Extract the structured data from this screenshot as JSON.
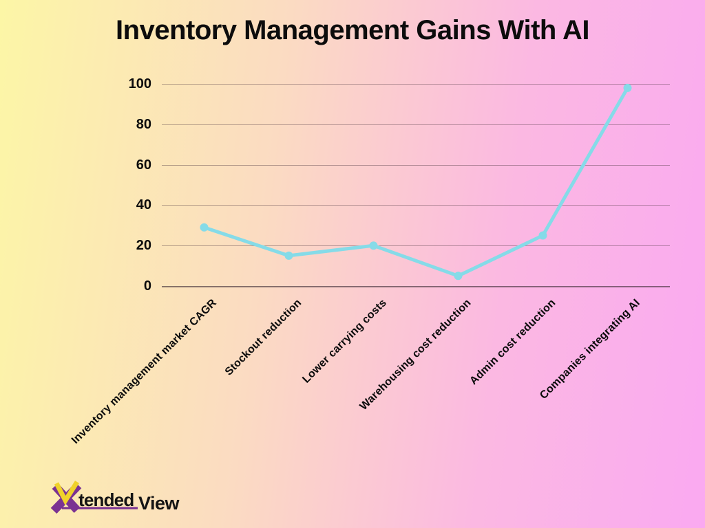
{
  "chart_data": {
    "type": "line",
    "title": "Inventory Management Gains With AI",
    "categories": [
      "Inventory management market CAGR",
      "Stockout reduction",
      "Lower carrying costs",
      "Warehousing cost reduction",
      "Admin cost reduction",
      "Companies integrating AI"
    ],
    "values": [
      29,
      15,
      20,
      5,
      25,
      98
    ],
    "xlabel": "",
    "ylabel": "",
    "ylim": [
      0,
      100
    ],
    "yticks": [
      0,
      20,
      40,
      60,
      80,
      100
    ],
    "grid": true,
    "legend_position": "none",
    "line_color": "#85DBE8",
    "point_color": "#85DBE8"
  },
  "logo": {
    "x": "X",
    "tended": "tended",
    "view": "View"
  },
  "colors": {
    "bg_left": "#FCF6A6",
    "bg_mid1": "#FBDBC2",
    "bg_mid2": "#FBB8E2",
    "bg_right": "#FAA9F1",
    "ink": "#0C0C0C",
    "grid": "rgba(73,52,62,0.42)",
    "axis": "rgba(58,40,50,0.60)",
    "line": "#85DBE8",
    "logo_purple": "#7B3392",
    "logo_yellow": "#F0D22B",
    "logo_text": "#141414"
  }
}
